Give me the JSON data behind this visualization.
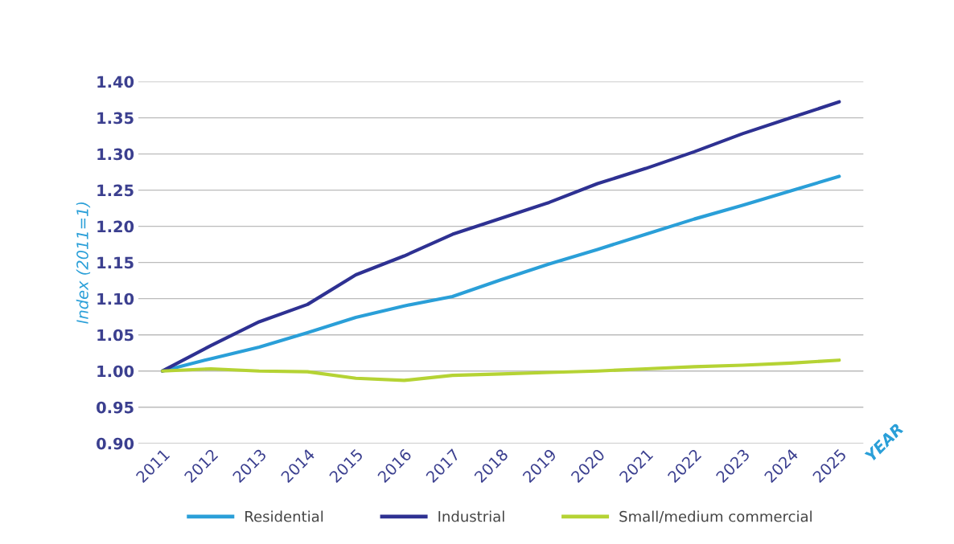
{
  "chart_data": {
    "type": "line",
    "ylabel": "Index (2011=1)",
    "xlabel": "YEAR",
    "categories": [
      "2011",
      "2012",
      "2013",
      "2014",
      "2015",
      "2016",
      "2017",
      "2018",
      "2019",
      "2020",
      "2021",
      "2022",
      "2023",
      "2024",
      "2025"
    ],
    "series": [
      {
        "name": "Residential",
        "color": "#2a9fd8",
        "values": [
          1.0,
          1.017,
          1.033,
          1.053,
          1.074,
          1.09,
          1.103,
          1.126,
          1.148,
          1.168,
          1.189,
          1.21,
          1.229,
          1.249,
          1.269
        ]
      },
      {
        "name": "Industrial",
        "color": "#2e3192",
        "values": [
          1.0,
          1.035,
          1.068,
          1.092,
          1.133,
          1.159,
          1.189,
          1.211,
          1.233,
          1.259,
          1.28,
          1.303,
          1.328,
          1.35,
          1.372
        ]
      },
      {
        "name": "Small/medium commercial",
        "color": "#b5d334",
        "values": [
          1.0,
          1.003,
          1.0,
          0.999,
          0.99,
          0.987,
          0.994,
          0.996,
          0.998,
          1.0,
          1.003,
          1.006,
          1.008,
          1.011,
          1.015
        ]
      }
    ],
    "ylim": [
      0.9,
      1.4
    ],
    "yticks": [
      {
        "value": 0.9,
        "label": "0.90"
      },
      {
        "value": 0.95,
        "label": "0.95"
      },
      {
        "value": 1.0,
        "label": "1.00"
      },
      {
        "value": 1.05,
        "label": "1.05"
      },
      {
        "value": 1.1,
        "label": "1.10"
      },
      {
        "value": 1.15,
        "label": "1.15"
      },
      {
        "value": 1.2,
        "label": "1.20"
      },
      {
        "value": 1.25,
        "label": "1.25"
      },
      {
        "value": 1.3,
        "label": "1.30"
      },
      {
        "value": 1.35,
        "label": "1.35"
      },
      {
        "value": 1.4,
        "label": "1.40"
      }
    ],
    "grid": "y",
    "legend": "bottom",
    "marker": "none",
    "line_style": "solid"
  }
}
